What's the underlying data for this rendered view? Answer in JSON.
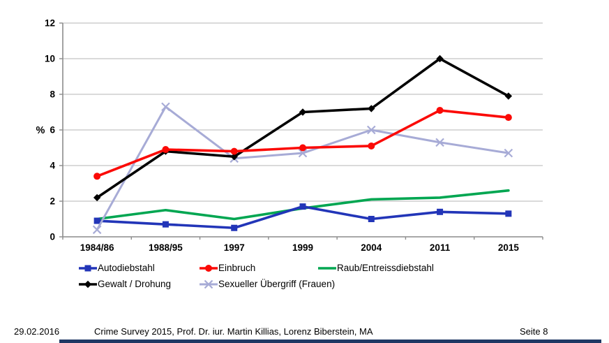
{
  "chart_data": {
    "type": "line",
    "title": "",
    "xlabel": "",
    "ylabel": "%",
    "categories": [
      "1984/86",
      "1988/95",
      "1997",
      "1999",
      "2004",
      "2011",
      "2015"
    ],
    "ylim": [
      0,
      12
    ],
    "ytick_interval": 2,
    "ytick_labels": [
      "0",
      "2",
      "4",
      "6",
      "8",
      "10",
      "12"
    ],
    "grid": true,
    "legend_position": "bottom",
    "series": [
      {
        "name": "Autodiebstahl",
        "color": "#2235B8",
        "marker": "square",
        "values": [
          0.9,
          0.7,
          0.5,
          1.7,
          1.0,
          1.4,
          1.3
        ]
      },
      {
        "name": "Einbruch",
        "color": "#FB0A06",
        "marker": "circle",
        "values": [
          3.4,
          4.9,
          4.8,
          5.0,
          5.1,
          7.1,
          6.7
        ]
      },
      {
        "name": "Raub/Entreissdiebstahl",
        "color": "#00A651",
        "marker": "none",
        "values": [
          1.0,
          1.5,
          1.0,
          1.6,
          2.1,
          2.2,
          2.6
        ]
      },
      {
        "name": "Gewalt / Drohung",
        "color": "#000000",
        "marker": "diamond",
        "values": [
          2.2,
          4.8,
          4.5,
          7.0,
          7.2,
          10.0,
          7.9
        ]
      },
      {
        "name": "Sexueller Übergriff (Frauen)",
        "color": "#A7ABD6",
        "marker": "x",
        "values": [
          0.4,
          7.3,
          4.4,
          4.7,
          6.0,
          5.3,
          4.7
        ]
      }
    ]
  },
  "footer": {
    "date": "29.02.2016",
    "source": "Crime Survey 2015, Prof. Dr. iur. Martin Killias, Lorenz Biberstein, MA",
    "page": "Seite 8"
  },
  "colors": {
    "gridline": "#C3C3C3",
    "axis": "#8C8C8C",
    "footer_bar": "#1F3864"
  }
}
